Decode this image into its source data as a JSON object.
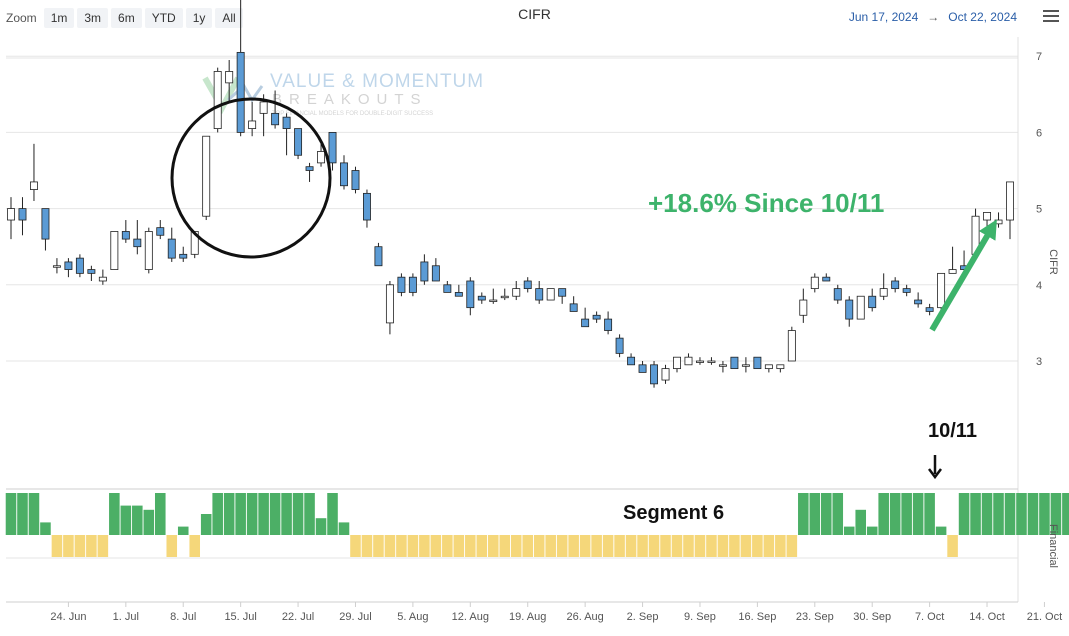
{
  "toolbar": {
    "zoom_label": "Zoom",
    "zoom_buttons": [
      "1m",
      "3m",
      "6m",
      "YTD",
      "1y",
      "All"
    ]
  },
  "title": "CIFR",
  "date_range": {
    "from": "Jun 17, 2024",
    "arrow": "→",
    "to": "Oct 22, 2024"
  },
  "watermark": {
    "line1": "VALUE & MOMENTUM",
    "line2": "BREAKOUTS",
    "line3": "TOP FINANCIAL MODELS FOR DOUBLE-DIGIT SUCCESS"
  },
  "annotations": {
    "gain_text": "+18.6% Since 10/11",
    "date_text": "10/11",
    "segment_text": "Segment 6",
    "gain_color": "#3db36b"
  },
  "colors": {
    "down": "#5b9bd5",
    "up": "#ffffff",
    "positive_bar": "#4caf66",
    "negative_bar": "#f5d77a"
  },
  "chart_data": [
    {
      "type": "candlestick",
      "title": "CIFR",
      "ylabel": "CIFR",
      "ylim": [
        2.3,
        8.0
      ],
      "yticks": [
        3,
        4,
        5,
        6,
        7
      ],
      "xtick_labels": [
        "24. Jun",
        "1. Jul",
        "8. Jul",
        "15. Jul",
        "22. Jul",
        "29. Jul",
        "5. Aug",
        "12. Aug",
        "19. Aug",
        "26. Aug",
        "2. Sep",
        "9. Sep",
        "16. Sep",
        "23. Sep",
        "30. Sep",
        "7. Oct",
        "14. Oct",
        "21. Oct"
      ],
      "grid": true,
      "ohlc": [
        [
          4.85,
          5.15,
          4.6,
          5.0
        ],
        [
          5.0,
          5.15,
          4.65,
          4.85
        ],
        [
          5.25,
          5.85,
          5.1,
          5.35
        ],
        [
          5.0,
          5.0,
          4.45,
          4.6
        ],
        [
          4.25,
          4.35,
          4.15,
          4.25
        ],
        [
          4.3,
          4.35,
          4.1,
          4.2
        ],
        [
          4.35,
          4.4,
          4.1,
          4.15
        ],
        [
          4.2,
          4.25,
          4.05,
          4.15
        ],
        [
          4.05,
          4.2,
          4.0,
          4.1
        ],
        [
          4.2,
          4.7,
          4.2,
          4.7
        ],
        [
          4.7,
          4.85,
          4.55,
          4.6
        ],
        [
          4.6,
          4.85,
          4.4,
          4.5
        ],
        [
          4.2,
          4.75,
          4.15,
          4.7
        ],
        [
          4.75,
          4.85,
          4.6,
          4.65
        ],
        [
          4.6,
          4.75,
          4.3,
          4.35
        ],
        [
          4.4,
          4.5,
          4.3,
          4.35
        ],
        [
          4.4,
          4.7,
          4.35,
          4.7
        ],
        [
          4.9,
          5.95,
          4.85,
          5.95
        ],
        [
          6.05,
          6.85,
          6.0,
          6.8
        ],
        [
          6.65,
          6.95,
          6.4,
          6.8
        ],
        [
          7.05,
          7.95,
          5.95,
          6.0
        ],
        [
          6.05,
          6.4,
          5.95,
          6.15
        ],
        [
          6.25,
          6.5,
          5.95,
          6.4
        ],
        [
          6.25,
          6.55,
          6.05,
          6.1
        ],
        [
          6.2,
          6.25,
          5.7,
          6.05
        ],
        [
          6.05,
          6.05,
          5.65,
          5.7
        ],
        [
          5.55,
          5.6,
          5.35,
          5.5
        ],
        [
          5.6,
          5.85,
          5.55,
          5.75
        ],
        [
          6.0,
          6.0,
          5.5,
          5.6
        ],
        [
          5.6,
          5.7,
          5.25,
          5.3
        ],
        [
          5.5,
          5.55,
          5.2,
          5.25
        ],
        [
          5.2,
          5.25,
          4.75,
          4.85
        ],
        [
          4.5,
          4.55,
          4.25,
          4.25
        ],
        [
          3.5,
          4.05,
          3.35,
          4.0
        ],
        [
          4.1,
          4.15,
          3.85,
          3.9
        ],
        [
          4.1,
          4.15,
          3.85,
          3.9
        ],
        [
          4.3,
          4.4,
          4.0,
          4.05
        ],
        [
          4.25,
          4.35,
          4.05,
          4.05
        ],
        [
          4.0,
          4.05,
          3.9,
          3.9
        ],
        [
          3.9,
          4.0,
          3.85,
          3.85
        ],
        [
          4.05,
          4.1,
          3.6,
          3.7
        ],
        [
          3.85,
          3.9,
          3.75,
          3.8
        ],
        [
          3.8,
          3.95,
          3.75,
          3.8
        ],
        [
          3.85,
          3.95,
          3.8,
          3.85
        ],
        [
          3.85,
          4.05,
          3.8,
          3.95
        ],
        [
          4.05,
          4.1,
          3.9,
          3.95
        ],
        [
          3.95,
          4.05,
          3.75,
          3.8
        ],
        [
          3.8,
          3.95,
          3.8,
          3.95
        ],
        [
          3.95,
          3.95,
          3.75,
          3.85
        ],
        [
          3.75,
          3.85,
          3.65,
          3.65
        ],
        [
          3.55,
          3.7,
          3.45,
          3.45
        ],
        [
          3.6,
          3.65,
          3.5,
          3.55
        ],
        [
          3.55,
          3.65,
          3.35,
          3.4
        ],
        [
          3.3,
          3.35,
          3.05,
          3.1
        ],
        [
          3.05,
          3.1,
          2.95,
          2.95
        ],
        [
          2.95,
          3.0,
          2.85,
          2.85
        ],
        [
          2.95,
          3.0,
          2.65,
          2.7
        ],
        [
          2.75,
          2.95,
          2.7,
          2.9
        ],
        [
          2.9,
          3.05,
          2.85,
          3.05
        ],
        [
          2.95,
          3.1,
          2.95,
          3.05
        ],
        [
          3.0,
          3.05,
          2.95,
          3.0
        ],
        [
          3.0,
          3.05,
          2.95,
          3.0
        ],
        [
          2.95,
          3.0,
          2.85,
          2.95
        ],
        [
          3.05,
          3.05,
          2.9,
          2.9
        ],
        [
          2.95,
          3.05,
          2.85,
          2.95
        ],
        [
          3.05,
          3.05,
          2.9,
          2.9
        ],
        [
          2.9,
          2.95,
          2.85,
          2.95
        ],
        [
          2.9,
          2.95,
          2.85,
          2.95
        ],
        [
          3.0,
          3.45,
          3.0,
          3.4
        ],
        [
          3.6,
          3.95,
          3.5,
          3.8
        ],
        [
          3.95,
          4.15,
          3.9,
          4.1
        ],
        [
          4.1,
          4.15,
          4.05,
          4.05
        ],
        [
          3.95,
          4.0,
          3.75,
          3.8
        ],
        [
          3.8,
          3.85,
          3.45,
          3.55
        ],
        [
          3.55,
          3.85,
          3.55,
          3.85
        ],
        [
          3.85,
          3.95,
          3.65,
          3.7
        ],
        [
          3.85,
          4.15,
          3.8,
          3.95
        ],
        [
          4.05,
          4.1,
          3.9,
          3.95
        ],
        [
          3.95,
          4.0,
          3.85,
          3.9
        ],
        [
          3.8,
          3.9,
          3.7,
          3.75
        ],
        [
          3.7,
          3.75,
          3.6,
          3.65
        ],
        [
          3.7,
          4.15,
          3.65,
          4.15
        ],
        [
          4.15,
          4.5,
          4.15,
          4.2
        ],
        [
          4.25,
          4.45,
          4.1,
          4.2
        ],
        [
          4.4,
          5.0,
          4.35,
          4.9
        ],
        [
          4.85,
          4.95,
          4.7,
          4.95
        ],
        [
          4.8,
          4.95,
          4.75,
          4.85
        ],
        [
          4.85,
          5.35,
          4.6,
          5.35
        ]
      ]
    },
    {
      "type": "bar",
      "ylabel": "Financial",
      "values": [
        1,
        1,
        1,
        0.3,
        -1,
        -1,
        -1,
        -1,
        -1,
        1,
        0.7,
        0.7,
        0.6,
        1,
        -1,
        0.2,
        -1,
        0.5,
        1,
        1,
        1,
        1,
        1,
        1,
        1,
        1,
        1,
        0.4,
        1,
        0.3,
        -1,
        -1,
        -1,
        -1,
        -1,
        -1,
        -1,
        -1,
        -1,
        -1,
        -1,
        -1,
        -1,
        -1,
        -1,
        -1,
        -1,
        -1,
        -1,
        -1,
        -1,
        -1,
        -1,
        -1,
        -1,
        -1,
        -1,
        -1,
        -1,
        -1,
        -1,
        -1,
        -1,
        -1,
        -1,
        -1,
        -1,
        -1,
        -1,
        1,
        1,
        1,
        1,
        0.2,
        0.6,
        0.2,
        1,
        1,
        1,
        1,
        1,
        0.2,
        -1,
        1,
        1,
        1,
        1,
        1,
        1,
        1,
        1,
        1,
        1
      ]
    }
  ]
}
